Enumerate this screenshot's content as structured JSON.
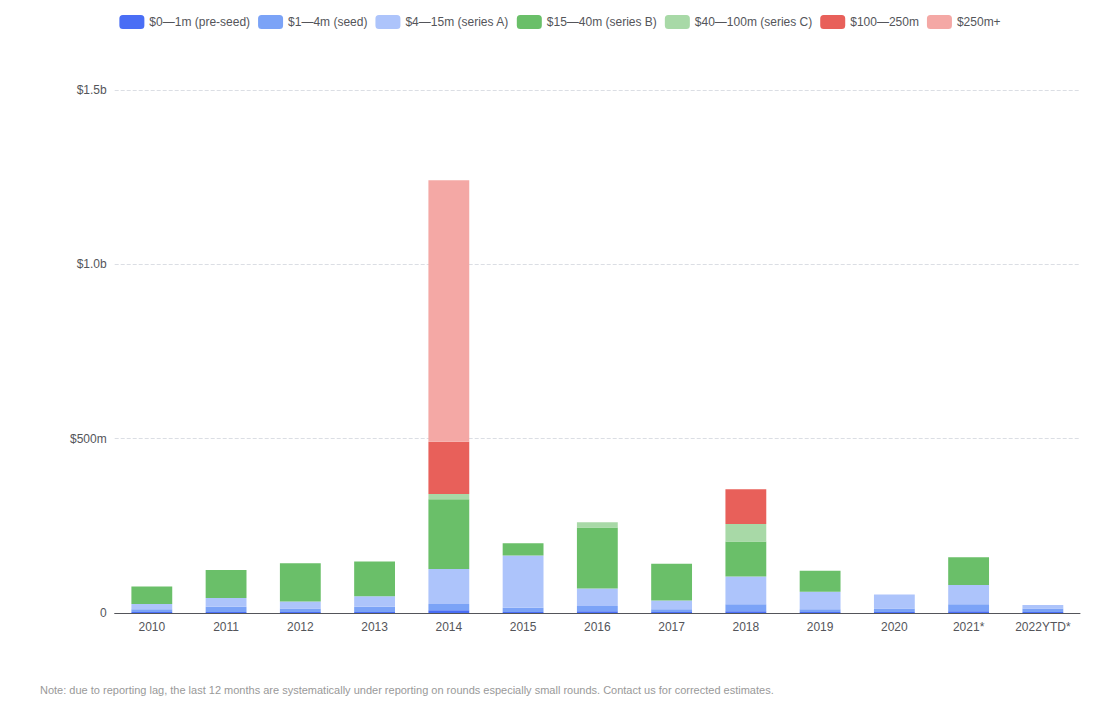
{
  "chart_data": {
    "type": "bar",
    "stacked": true,
    "grid": true,
    "legend": "top",
    "categories": [
      "2010",
      "2011",
      "2012",
      "2013",
      "2014",
      "2015",
      "2016",
      "2017",
      "2018",
      "2019",
      "2020",
      "2021*",
      "2022YTD*"
    ],
    "series": [
      {
        "name": "$0—1m (pre-seed)",
        "color": "#4a6ef5",
        "values": [
          3,
          3,
          3,
          3,
          8,
          3,
          5,
          3,
          5,
          3,
          3,
          5,
          3
        ]
      },
      {
        "name": "$1—4m (seed)",
        "color": "#7ba3f7",
        "values": [
          8,
          15,
          10,
          15,
          18,
          12,
          15,
          8,
          20,
          8,
          10,
          20,
          10
        ]
      },
      {
        "name": "$4—15m (series A)",
        "color": "#adc4fb",
        "values": [
          15,
          25,
          20,
          30,
          100,
          150,
          50,
          25,
          80,
          50,
          40,
          55,
          10
        ]
      },
      {
        "name": "$15—40m (series B)",
        "color": "#6abf69",
        "values": [
          50,
          80,
          110,
          100,
          200,
          35,
          175,
          105,
          100,
          60,
          0,
          80,
          0
        ]
      },
      {
        "name": "$40—100m (series C)",
        "color": "#a8d9a7",
        "values": [
          0,
          0,
          0,
          0,
          15,
          0,
          15,
          0,
          50,
          0,
          0,
          0,
          0
        ]
      },
      {
        "name": "$100—250m",
        "color": "#e8605a",
        "values": [
          0,
          0,
          0,
          0,
          150,
          0,
          0,
          0,
          100,
          0,
          0,
          0,
          0
        ]
      },
      {
        "name": "$250m+",
        "color": "#f4a8a5",
        "values": [
          0,
          0,
          0,
          0,
          750,
          0,
          0,
          0,
          0,
          0,
          0,
          0,
          0
        ]
      }
    ],
    "ylim": [
      0,
      1500
    ],
    "yticks": [
      0,
      {
        "value": 500,
        "label": "$500m"
      },
      {
        "value": 1000,
        "label": "$1.0b"
      },
      {
        "value": 1500,
        "label": "$1.5b"
      }
    ],
    "annotations": [
      "Note: due to reporting lag, the last 12 months are systematically under reporting on rounds especially small rounds. Contact us for corrected estimates."
    ]
  }
}
